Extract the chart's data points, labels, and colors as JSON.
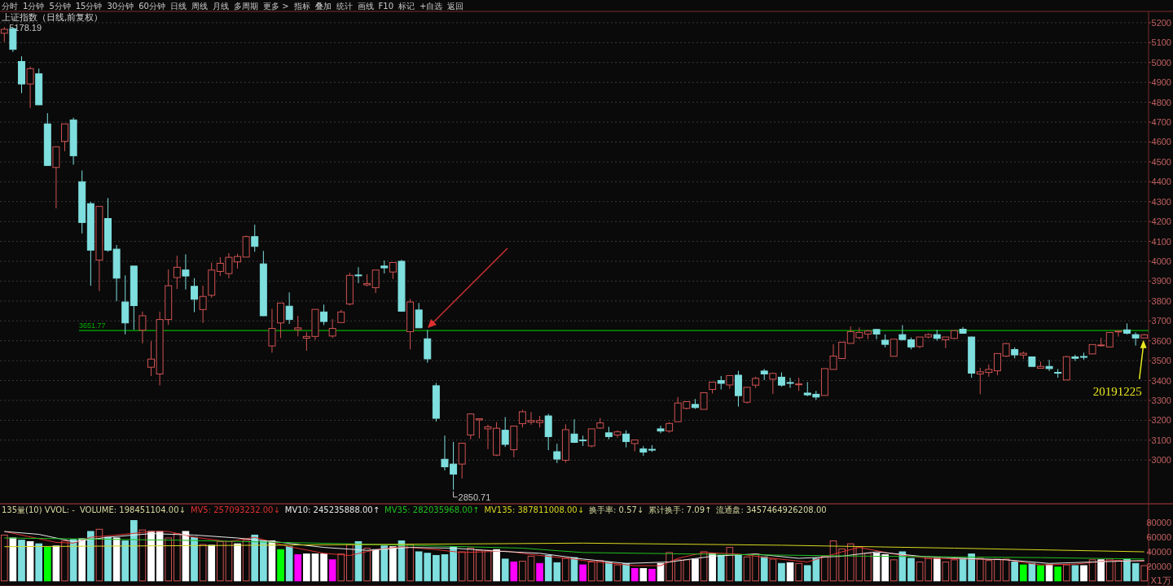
{
  "chart_data": [
    {
      "type": "candlestick",
      "title": "上证指数（日线,前复权）",
      "categories": [
        null,
        null,
        null,
        null,
        null,
        null,
        null,
        null,
        null,
        null,
        null,
        null,
        null,
        null,
        null,
        null,
        null,
        null,
        null,
        null,
        null,
        null,
        null,
        null,
        null,
        null,
        null,
        null,
        null,
        null,
        null,
        null,
        null,
        null,
        null,
        null,
        null,
        null,
        null,
        null,
        null,
        null,
        null,
        null,
        null,
        null,
        null,
        null,
        null,
        null,
        null,
        null,
        null,
        null,
        null,
        null,
        null,
        null,
        null,
        null,
        null,
        null,
        null,
        null,
        null,
        null,
        null,
        null,
        null,
        null,
        null,
        null,
        null,
        null,
        null,
        null,
        null,
        null,
        null,
        null,
        null,
        null,
        null,
        null,
        null,
        null,
        null,
        null,
        null,
        null,
        null,
        null,
        null,
        null,
        null,
        null,
        null,
        null,
        null,
        null,
        null,
        null,
        null,
        null,
        null,
        null,
        null,
        null,
        null,
        null,
        null,
        null,
        null,
        null,
        null,
        null,
        null,
        null,
        null,
        null,
        null,
        null,
        null,
        null,
        null,
        null,
        null,
        null,
        null,
        null,
        null,
        null,
        null
      ],
      "ohlc": [
        [
          5147,
          5178.19,
          5103,
          5167
        ],
        [
          5170,
          5174,
          5053,
          5066
        ],
        [
          5005,
          5031,
          4846,
          4892
        ],
        [
          4892,
          4980,
          4771,
          4969
        ],
        [
          4943,
          4969,
          4785,
          4787
        ],
        [
          4691,
          4745,
          4479,
          4482
        ],
        [
          4472,
          4576,
          4266,
          4576
        ],
        [
          4603,
          4691,
          4554,
          4691
        ],
        [
          4711,
          4722,
          4486,
          4531
        ],
        [
          4400,
          4457,
          4140,
          4195
        ],
        [
          4290,
          4299,
          3877,
          4056
        ],
        [
          4006,
          4276,
          3850,
          4276
        ],
        [
          4215,
          4318,
          4048,
          4056
        ],
        [
          4061,
          4082,
          3799,
          3915
        ],
        [
          3795,
          3929,
          3632,
          3690
        ],
        [
          3976,
          3976,
          3655,
          3777
        ],
        [
          3653,
          3747,
          3587,
          3726
        ],
        [
          3467,
          3598,
          3423,
          3508
        ],
        [
          3433,
          3747,
          3375,
          3707
        ],
        [
          3707,
          3959,
          3680,
          3877
        ],
        [
          3918,
          4028,
          3860,
          3970
        ],
        [
          3956,
          4035,
          3858,
          3926
        ],
        [
          3874,
          3915,
          3744,
          3809
        ],
        [
          3757,
          3877,
          3690,
          3823
        ],
        [
          3829,
          3993,
          3817,
          3956
        ],
        [
          3949,
          4020,
          3926,
          3990
        ],
        [
          3938,
          4041,
          3915,
          4020
        ],
        [
          3997,
          4038,
          3963,
          4024
        ],
        [
          4021,
          4130,
          4021,
          4124
        ],
        [
          4124,
          4184,
          4048,
          4075
        ],
        [
          3987,
          4052,
          3724,
          3726
        ],
        [
          3574,
          3761,
          3540,
          3662
        ],
        [
          3690,
          3790,
          3614,
          3790
        ],
        [
          3774,
          3843,
          3685,
          3707
        ],
        [
          3656,
          3726,
          3622,
          3665
        ],
        [
          3613,
          3645,
          3550,
          3622
        ],
        [
          3622,
          3758,
          3604,
          3758
        ],
        [
          3745,
          3782,
          3679,
          3697
        ],
        [
          3624,
          3709,
          3614,
          3662
        ],
        [
          3692,
          3755,
          3692,
          3745
        ],
        [
          3785,
          3942,
          3778,
          3929
        ],
        [
          3931,
          3970,
          3890,
          3929
        ],
        [
          3881,
          3935,
          3874,
          3888
        ],
        [
          3867,
          3956,
          3840,
          3956
        ],
        [
          3976,
          4004,
          3939,
          3967
        ],
        [
          3946,
          3994,
          3911,
          3994
        ],
        [
          4000,
          4007,
          3746,
          3749
        ],
        [
          3646,
          3810,
          3557,
          3795
        ],
        [
          3755,
          3790,
          3665,
          3665
        ],
        [
          3610,
          3654,
          3490,
          3509
        ],
        [
          3374,
          3388,
          3194,
          3210
        ],
        [
          3004,
          3123,
          2948,
          2966
        ],
        [
          2980,
          3091,
          2850.71,
          2929
        ],
        [
          2980,
          3085,
          2907,
          3085
        ],
        [
          3126,
          3232,
          3105,
          3232
        ],
        [
          3202,
          3208,
          3109,
          3208
        ],
        [
          3157,
          3178,
          3055,
          3167
        ],
        [
          3025,
          3191,
          3020,
          3160
        ],
        [
          3150,
          3216,
          3066,
          3079
        ],
        [
          3052,
          3171,
          3014,
          3171
        ],
        [
          3183,
          3253,
          3164,
          3243
        ],
        [
          3191,
          3242,
          3178,
          3199
        ],
        [
          3189,
          3222,
          3164,
          3199
        ],
        [
          3222,
          3232,
          3050,
          3118
        ],
        [
          3042,
          3082,
          2985,
          3005
        ],
        [
          2999,
          3180,
          2987,
          3153
        ],
        [
          3131,
          3205,
          3086,
          3089
        ],
        [
          3101,
          3123,
          3071,
          3099
        ],
        [
          3071,
          3157,
          3064,
          3157
        ],
        [
          3161,
          3212,
          3157,
          3187
        ],
        [
          3137,
          3167,
          3105,
          3118
        ],
        [
          3126,
          3150,
          3113,
          3142
        ],
        [
          3131,
          3150,
          3064,
          3093
        ],
        [
          3083,
          3101,
          3044,
          3101
        ],
        [
          3056,
          3070,
          3022,
          3040
        ],
        [
          3054,
          3075,
          3041,
          3052
        ],
        [
          3157,
          3173,
          3135,
          3146
        ],
        [
          3146,
          3191,
          3137,
          3184
        ],
        [
          3193,
          3317,
          3191,
          3287
        ],
        [
          3260,
          3294,
          3254,
          3294
        ],
        [
          3280,
          3307,
          3257,
          3264
        ],
        [
          3255,
          3339,
          3255,
          3339
        ],
        [
          3355,
          3392,
          3335,
          3392
        ],
        [
          3400,
          3423,
          3355,
          3386
        ],
        [
          3378,
          3425,
          3359,
          3425
        ],
        [
          3427,
          3449,
          3269,
          3324
        ],
        [
          3291,
          3366,
          3284,
          3366
        ],
        [
          3377,
          3419,
          3362,
          3411
        ],
        [
          3448,
          3458,
          3403,
          3433
        ],
        [
          3407,
          3440,
          3333,
          3436
        ],
        [
          3417,
          3441,
          3369,
          3377
        ],
        [
          3390,
          3414,
          3363,
          3388
        ],
        [
          3381,
          3414,
          3348,
          3383
        ],
        [
          3337,
          3392,
          3321,
          3328
        ],
        [
          3331,
          3348,
          3303,
          3317
        ],
        [
          3325,
          3460,
          3325,
          3460
        ],
        [
          3456,
          3583,
          3456,
          3523
        ],
        [
          3511,
          3593,
          3508,
          3593
        ],
        [
          3587,
          3672,
          3587,
          3646
        ],
        [
          3616,
          3667,
          3608,
          3642
        ],
        [
          3634,
          3655,
          3608,
          3649
        ],
        [
          3657,
          3660,
          3608,
          3634
        ],
        [
          3603,
          3632,
          3567,
          3582
        ],
        [
          3522,
          3608,
          3522,
          3608
        ],
        [
          3631,
          3679,
          3601,
          3606
        ],
        [
          3605,
          3617,
          3557,
          3569
        ],
        [
          3571,
          3619,
          3563,
          3619
        ],
        [
          3619,
          3638,
          3612,
          3631
        ],
        [
          3631,
          3655,
          3601,
          3612
        ],
        [
          3605,
          3619,
          3563,
          3619
        ],
        [
          3612,
          3651,
          3608,
          3651
        ],
        [
          3658,
          3669,
          3635,
          3638
        ],
        [
          3619,
          3622,
          3414,
          3437
        ],
        [
          3433,
          3464,
          3331,
          3444
        ],
        [
          3441,
          3481,
          3419,
          3456
        ],
        [
          3449,
          3536,
          3427,
          3536
        ],
        [
          3523,
          3589,
          3519,
          3586
        ],
        [
          3556,
          3567,
          3512,
          3529
        ],
        [
          3528,
          3546,
          3508,
          3537
        ],
        [
          3519,
          3519,
          3471,
          3471
        ],
        [
          3462,
          3495,
          3462,
          3471
        ],
        [
          3471,
          3504,
          3448,
          3460
        ],
        [
          3441,
          3458,
          3414,
          3439
        ],
        [
          3403,
          3524,
          3403,
          3520
        ],
        [
          3519,
          3530,
          3499,
          3512
        ],
        [
          3521,
          3540,
          3505,
          3517
        ],
        [
          3534,
          3581,
          3534,
          3581
        ],
        [
          3577,
          3615,
          3571,
          3579
        ],
        [
          3569,
          3642,
          3569,
          3642
        ],
        [
          3646,
          3649,
          3621,
          3649
        ],
        [
          3655,
          3687,
          3632,
          3638
        ],
        [
          3631,
          3642,
          3576,
          3614
        ],
        [
          3614,
          3634,
          3612,
          3630
        ]
      ],
      "value_labels": [
        "5178.19",
        null,
        null,
        null,
        null,
        null,
        null,
        null,
        null,
        null,
        null,
        null,
        null,
        null,
        null,
        null,
        null,
        null,
        null,
        null,
        null,
        null,
        null,
        null,
        null,
        null,
        null,
        null,
        null,
        null,
        null,
        null,
        null,
        null,
        null,
        null,
        null,
        null,
        null,
        null,
        null,
        null,
        null,
        null,
        null,
        null,
        null,
        null,
        null,
        null,
        null,
        null,
        "2850.71",
        null,
        null,
        null,
        null,
        null,
        null,
        null,
        null,
        null,
        null,
        null,
        null,
        null,
        null,
        null,
        null,
        null,
        null,
        null,
        null,
        null,
        null,
        null,
        null,
        null,
        null,
        null,
        null,
        null,
        null,
        null,
        null,
        null,
        null,
        null,
        null,
        null,
        null,
        null,
        null,
        null,
        null,
        null,
        null,
        null,
        null,
        null,
        null,
        null,
        null,
        null,
        null,
        null,
        null,
        null,
        null,
        null,
        null,
        null,
        null,
        null,
        null,
        null,
        null,
        null,
        null,
        null,
        null,
        null,
        null,
        null,
        null,
        null,
        null,
        null,
        null,
        null,
        null,
        null,
        null
      ],
      "colors": [
        "#d05252",
        "#7fdfdf",
        "#7fdfdf",
        "#d05252",
        "#7fdfdf",
        "#7fdfdf",
        "#d05252",
        "#d05252",
        "#7fdfdf",
        "#7fdfdf",
        "#7fdfdf",
        "#d05252",
        "#7fdfdf",
        "#7fdfdf",
        "#7fdfdf",
        "#7fdfdf",
        "#d05252",
        "#d05252",
        "#d05252",
        "#d05252",
        "#d05252",
        "#7fdfdf",
        "#7fdfdf",
        "#d05252",
        "#d05252",
        "#d05252",
        "#d05252",
        "#d05252",
        "#d05252",
        "#7fdfdf",
        "#7fdfdf",
        "#d05252",
        "#d05252",
        "#7fdfdf",
        "#d05252",
        "#d05252",
        "#d05252",
        "#7fdfdf",
        "#d05252",
        "#d05252",
        "#d05252",
        "#7fdfdf",
        "#d05252",
        "#d05252",
        "#7fdfdf",
        "#d05252",
        "#7fdfdf",
        "#d05252",
        "#7fdfdf",
        "#7fdfdf",
        "#7fdfdf",
        "#7fdfdf",
        "#7fdfdf",
        "#d05252",
        "#d05252",
        "#d05252",
        "#d05252",
        "#d05252",
        "#7fdfdf",
        "#d05252",
        "#d05252",
        "#d05252",
        "#d05252",
        "#7fdfdf",
        "#7fdfdf",
        "#d05252",
        "#7fdfdf",
        "#7fdfdf",
        "#d05252",
        "#d05252",
        "#7fdfdf",
        "#d05252",
        "#7fdfdf",
        "#d05252",
        "#7fdfdf",
        "#7fdfdf",
        "#7fdfdf",
        "#d05252",
        "#d05252",
        "#d05252",
        "#7fdfdf",
        "#d05252",
        "#d05252",
        "#7fdfdf",
        "#d05252",
        "#7fdfdf",
        "#d05252",
        "#d05252",
        "#7fdfdf",
        "#d05252",
        "#7fdfdf",
        "#7fdfdf",
        "#d05252",
        "#7fdfdf",
        "#7fdfdf",
        "#d05252",
        "#d05252",
        "#d05252",
        "#d05252",
        "#d05252",
        "#d05252",
        "#7fdfdf",
        "#7fdfdf",
        "#d05252",
        "#7fdfdf",
        "#7fdfdf",
        "#d05252",
        "#d05252",
        "#7fdfdf",
        "#d05252",
        "#d05252",
        "#7fdfdf",
        "#7fdfdf",
        "#d05252",
        "#d05252",
        "#d05252",
        "#d05252",
        "#7fdfdf",
        "#d05252",
        "#7fdfdf",
        "#d05252",
        "#7fdfdf",
        "#7fdfdf",
        "#d05252",
        "#7fdfdf",
        "#7fdfdf",
        "#d05252",
        "#d05252",
        "#d05252",
        "#d05252",
        "#7fdfdf",
        "#7fdfdf",
        "#d05252"
      ],
      "ylim": [
        2780,
        5257
      ],
      "yticks": [
        3000,
        3100,
        3200,
        3300,
        3400,
        3500,
        3600,
        3700,
        3800,
        3900,
        4000,
        4100,
        4200,
        4300,
        4400,
        4500,
        4600,
        4700,
        4800,
        4900,
        5000,
        5100,
        5200
      ],
      "grid": "y",
      "ref_lines": [
        {
          "axis": "y",
          "value": 3651.77,
          "label": "3651.77",
          "color": "#00b000"
        }
      ],
      "annotations": [
        "分时",
        "1分钟",
        "5分钟",
        "15分钟",
        "30分钟",
        "60分钟",
        "日线",
        "周线",
        "月线",
        "多周期",
        "更多 >",
        "指标",
        "叠加",
        "统计",
        "画线",
        "F10",
        "标记",
        "+自选",
        "返回",
        "20191225"
      ]
    },
    {
      "type": "bar",
      "ylabel": "X1万",
      "categories": [
        null,
        null,
        null,
        null,
        null,
        null,
        null,
        null,
        null,
        null,
        null,
        null,
        null,
        null,
        null,
        null,
        null,
        null,
        null,
        null,
        null,
        null,
        null,
        null,
        null,
        null,
        null,
        null,
        null,
        null,
        null,
        null,
        null,
        null,
        null,
        null,
        null,
        null,
        null,
        null,
        null,
        null,
        null,
        null,
        null,
        null,
        null,
        null,
        null,
        null,
        null,
        null,
        null,
        null,
        null,
        null,
        null,
        null,
        null,
        null,
        null,
        null,
        null,
        null,
        null,
        null,
        null,
        null,
        null,
        null,
        null,
        null,
        null,
        null,
        null,
        null,
        null,
        null,
        null,
        null,
        null,
        null,
        null,
        null,
        null,
        null,
        null,
        null,
        null,
        null,
        null,
        null,
        null,
        null,
        null,
        null,
        null,
        null,
        null,
        null,
        null,
        null,
        null,
        null,
        null,
        null,
        null,
        null,
        null,
        null,
        null,
        null,
        null,
        null,
        null,
        null,
        null,
        null,
        null,
        null,
        null,
        null,
        null,
        null,
        null,
        null,
        null,
        null,
        null,
        null,
        null,
        null,
        null
      ],
      "ylim": [
        -7000,
        106000
      ],
      "yticks": [
        20000,
        40000,
        60000,
        80000
      ],
      "annotations": [
        "135量(10) VVOL: -",
        "VOLUME: 198451104.00↓",
        "换手率: 0.57↓",
        "累计换手: 7.09↑",
        "流通盘: 3457464926208.00"
      ],
      "series": [
        {
          "type": "bar",
          "colors": [
            "#d05252",
            "#ffffff",
            "#7fdfdf",
            "#ffffff",
            "#7fdfdf",
            "#00ff00",
            "#ffffff",
            "#d05252",
            "#7fdfdf",
            "#ffffff",
            "#7fdfdf",
            "#d05252",
            "#7fdfdf",
            "#ffffff",
            "#7fdfdf",
            "#7fdfdf",
            "#d05252",
            "#ffffff",
            "#ffffff",
            "#d05252",
            "#d05252",
            "#ffffff",
            "#7fdfdf",
            "#d05252",
            "#ffffff",
            "#d05252",
            "#d05252",
            "#ffffff",
            "#d05252",
            "#7fdfdf",
            "#7fdfdf",
            "#ffffff",
            "#00ff00",
            "#7fdfdf",
            "#ff00ff",
            "#ffffff",
            "#ffffff",
            "#ffffff",
            "#ff00ff",
            "#d05252",
            "#d05252",
            "#7fdfdf",
            "#d05252",
            "#ffffff",
            "#7fdfdf",
            "#ffffff",
            "#7fdfdf",
            "#d05252",
            "#7fdfdf",
            "#7fdfdf",
            "#7fdfdf",
            "#7fdfdf",
            "#7fdfdf",
            "#d05252",
            "#d05252",
            "#d05252",
            "#d05252",
            "#ffffff",
            "#7fdfdf",
            "#ff00ff",
            "#d05252",
            "#d05252",
            "#ff00ff",
            "#7fdfdf",
            "#7fdfdf",
            "#d05252",
            "#7fdfdf",
            "#ff00ff",
            "#d05252",
            "#d05252",
            "#7fdfdf",
            "#d05252",
            "#7fdfdf",
            "#ff00ff",
            "#ffffff",
            "#ff00ff",
            "#ffffff",
            "#d05252",
            "#d05252",
            "#d05252",
            "#ffffff",
            "#d05252",
            "#ffffff",
            "#7fdfdf",
            "#d05252",
            "#7fdfdf",
            "#d05252",
            "#d05252",
            "#7fdfdf",
            "#d05252",
            "#7fdfdf",
            "#ffffff",
            "#d05252",
            "#7fdfdf",
            "#7fdfdf",
            "#d05252",
            "#d05252",
            "#d05252",
            "#d05252",
            "#d05252",
            "#d05252",
            "#ffffff",
            "#ffffff",
            "#d05252",
            "#7fdfdf",
            "#7fdfdf",
            "#d05252",
            "#d05252",
            "#ffffff",
            "#d05252",
            "#d05252",
            "#7fdfdf",
            "#7fdfdf",
            "#d05252",
            "#d05252",
            "#d05252",
            "#d05252",
            "#7fdfdf",
            "#00ff00",
            "#7fdfdf",
            "#00ff00",
            "#ffffff",
            "#00ff00",
            "#d05252",
            "#7fdfdf",
            "#ffffff",
            "#d05252",
            "#ffffff",
            "#d05252",
            "#d05252",
            "#7fdfdf",
            "#7fdfdf",
            "#d05252"
          ],
          "values": [
            63000,
            59000,
            56000,
            54000,
            51000,
            46000,
            48000,
            55000,
            57000,
            58000,
            68000,
            71000,
            60000,
            59000,
            55000,
            83000,
            70000,
            68000,
            68000,
            59000,
            65000,
            68000,
            60000,
            50000,
            49000,
            54000,
            54000,
            51000,
            56000,
            63000,
            55000,
            55000,
            43000,
            47000,
            36000,
            37000,
            37000,
            37000,
            29000,
            37000,
            50000,
            54000,
            45000,
            43000,
            48000,
            47000,
            55000,
            50000,
            40000,
            38000,
            35000,
            36000,
            47000,
            40000,
            45000,
            42000,
            42000,
            43000,
            30000,
            26000,
            27000,
            34000,
            24000,
            35000,
            25000,
            31000,
            32000,
            22000,
            26000,
            28000,
            26000,
            22000,
            24000,
            17000,
            17000,
            16000,
            24000,
            39000,
            29000,
            29000,
            30000,
            40000,
            38000,
            35000,
            46000,
            35000,
            33000,
            37000,
            33000,
            30000,
            24000,
            25000,
            24000,
            21000,
            31000,
            34000,
            55000,
            44000,
            51000,
            47000,
            38000,
            38000,
            36000,
            29000,
            40000,
            31000,
            26000,
            31000,
            31000,
            26000,
            29000,
            31000,
            37000,
            31000,
            28000,
            30000,
            30000,
            26000,
            22000,
            24000,
            21000,
            22000,
            19000,
            22000,
            21000,
            21000,
            29000,
            29000,
            30000,
            28000,
            30000,
            24000,
            21000
          ]
        },
        {
          "type": "line",
          "name": "MV5: 257093232.00↓",
          "color": "#e03030",
          "values": [
            68000,
            null,
            null,
            null,
            58000,
            null,
            53000,
            null,
            52000,
            null,
            60000,
            null,
            null,
            63000,
            null,
            null,
            null,
            68000,
            null,
            68000,
            null,
            null,
            60000,
            null,
            null,
            null,
            54000,
            null,
            null,
            60000,
            null,
            null,
            null,
            47000,
            null,
            null,
            null,
            38000,
            null,
            null,
            35000,
            null,
            null,
            43000,
            null,
            null,
            47000,
            null,
            null,
            null,
            43000,
            null,
            null,
            39000,
            null,
            null,
            null,
            null,
            41000,
            null,
            null,
            null,
            35000,
            null,
            null,
            null,
            30000,
            28000,
            null,
            null,
            null,
            null,
            null,
            21000,
            null,
            null,
            21000,
            null,
            31000,
            null,
            null,
            39000,
            null,
            null,
            null,
            37000,
            null,
            null,
            null,
            31000,
            null,
            null,
            null,
            26000,
            null,
            null,
            null,
            40000,
            null,
            46000,
            null,
            null,
            null,
            37000,
            null,
            null,
            null,
            31000,
            null,
            null,
            null,
            null,
            30000,
            null,
            null,
            null,
            29000,
            null,
            null,
            null,
            22000,
            null,
            null,
            null,
            23000,
            null,
            null,
            null,
            28000,
            null,
            null,
            null,
            27000
          ]
        },
        {
          "type": "line",
          "name": "MV10: 245235888.00↑",
          "color": "#e8e8e8",
          "values": [
            68000,
            null,
            null,
            null,
            64000,
            null,
            null,
            null,
            54000,
            null,
            null,
            null,
            60000,
            null,
            null,
            null,
            null,
            65000,
            null,
            null,
            null,
            null,
            63000,
            null,
            null,
            null,
            null,
            59000,
            null,
            null,
            null,
            null,
            53000,
            null,
            null,
            null,
            null,
            46000,
            null,
            null,
            null,
            null,
            42000,
            null,
            null,
            null,
            null,
            46000,
            null,
            null,
            null,
            null,
            45000,
            null,
            null,
            null,
            null,
            41000,
            null,
            null,
            null,
            null,
            38000,
            null,
            null,
            null,
            null,
            30000,
            null,
            null,
            null,
            null,
            24000,
            null,
            null,
            null,
            null,
            26000,
            null,
            null,
            null,
            null,
            34000,
            null,
            null,
            null,
            null,
            37000,
            null,
            null,
            null,
            null,
            31000,
            null,
            null,
            null,
            null,
            34000,
            null,
            null,
            null,
            40000,
            null,
            null,
            null,
            null,
            34000,
            null,
            null,
            null,
            null,
            31000,
            null,
            null,
            null,
            null,
            29000,
            null,
            null,
            null,
            null,
            24000,
            null,
            null,
            null,
            null,
            26000,
            null,
            null,
            null,
            null,
            null,
            28000
          ]
        },
        {
          "type": "line",
          "name": "MV35: 282035968.00↑",
          "color": "#20c020",
          "values": [
            59000,
            null,
            null,
            null,
            null,
            null,
            null,
            null,
            null,
            null,
            null,
            null,
            null,
            null,
            null,
            null,
            null,
            null,
            null,
            null,
            56000,
            null,
            null,
            null,
            null,
            null,
            null,
            null,
            null,
            null,
            null,
            null,
            null,
            null,
            null,
            null,
            null,
            null,
            null,
            null,
            51000,
            null,
            null,
            null,
            null,
            null,
            null,
            null,
            null,
            null,
            null,
            null,
            null,
            null,
            null,
            null,
            null,
            null,
            null,
            null,
            45000,
            null,
            null,
            null,
            null,
            null,
            null,
            39000,
            null,
            null,
            null,
            null,
            null,
            null,
            null,
            null,
            null,
            null,
            null,
            null,
            37000,
            null,
            null,
            null,
            null,
            null,
            null,
            null,
            null,
            null,
            null,
            null,
            null,
            null,
            null,
            null,
            null,
            null,
            null,
            null,
            34000,
            null,
            null,
            null,
            null,
            null,
            null,
            null,
            null,
            null,
            null,
            null,
            null,
            null,
            null,
            null,
            null,
            null,
            null,
            null,
            32000,
            null,
            null,
            null,
            null,
            null,
            null,
            null,
            null,
            null,
            null,
            null,
            30000
          ]
        },
        {
          "type": "line",
          "name": "MV135: 387811008.00↓",
          "color": "#d8d820",
          "values": [
            47000,
            null,
            null,
            null,
            null,
            null,
            null,
            null,
            null,
            null,
            null,
            null,
            null,
            null,
            null,
            null,
            null,
            null,
            null,
            null,
            null,
            null,
            null,
            null,
            null,
            null,
            null,
            null,
            null,
            null,
            49000,
            null,
            null,
            null,
            null,
            null,
            null,
            null,
            null,
            null,
            null,
            null,
            null,
            null,
            null,
            null,
            null,
            null,
            null,
            null,
            null,
            null,
            null,
            null,
            null,
            null,
            null,
            null,
            null,
            null,
            null,
            null,
            null,
            null,
            null,
            null,
            null,
            52000,
            null,
            null,
            null,
            null,
            null,
            null,
            null,
            null,
            null,
            null,
            null,
            null,
            null,
            null,
            null,
            null,
            null,
            null,
            null,
            null,
            null,
            null,
            49000,
            null,
            null,
            null,
            null,
            null,
            null,
            null,
            null,
            null,
            null,
            null,
            null,
            null,
            null,
            null,
            null,
            null,
            null,
            null,
            45000,
            null,
            null,
            null,
            null,
            null,
            null,
            null,
            null,
            null,
            null,
            null,
            null,
            null,
            null,
            null,
            null,
            null,
            null,
            null,
            null,
            null,
            40000
          ]
        }
      ]
    }
  ]
}
